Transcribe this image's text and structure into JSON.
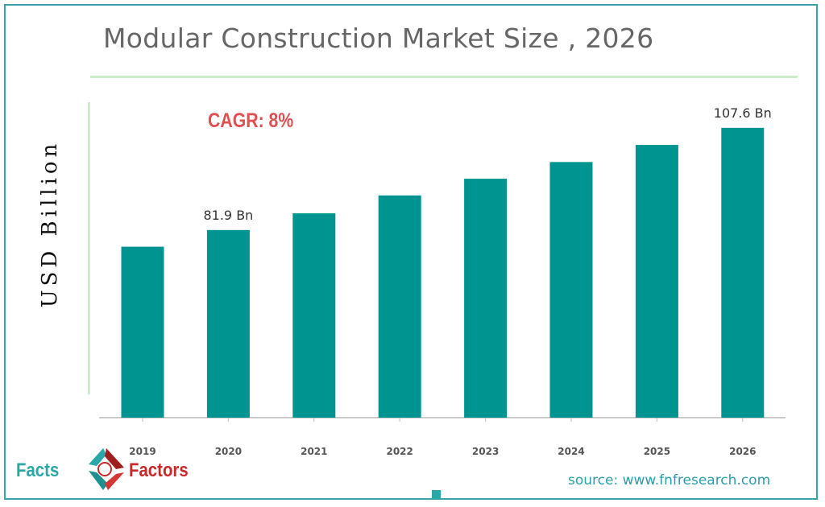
{
  "chart_data": {
    "type": "bar",
    "title": "Modular Construction Market Size , 2026",
    "ylabel": "USD Billion",
    "xlabel": "",
    "categories": [
      "2019",
      "2020",
      "2021",
      "2022",
      "2023",
      "2024",
      "2025",
      "2026"
    ],
    "values": [
      77.7,
      81.9,
      86.1,
      90.6,
      94.8,
      99.0,
      103.3,
      107.6
    ],
    "data_labels": {
      "2020": "81.9 Bn",
      "2026": "107.6 Bn"
    },
    "ylim": [
      34.7,
      110
    ],
    "grid": false,
    "bar_color": "#009490",
    "annotation": "CAGR: 8%",
    "annotation_color": "#e05050"
  },
  "branding": {
    "logo_text_left": "Facts",
    "logo_text_right": "Factors",
    "source": "source: www.fnfresearch.com"
  }
}
